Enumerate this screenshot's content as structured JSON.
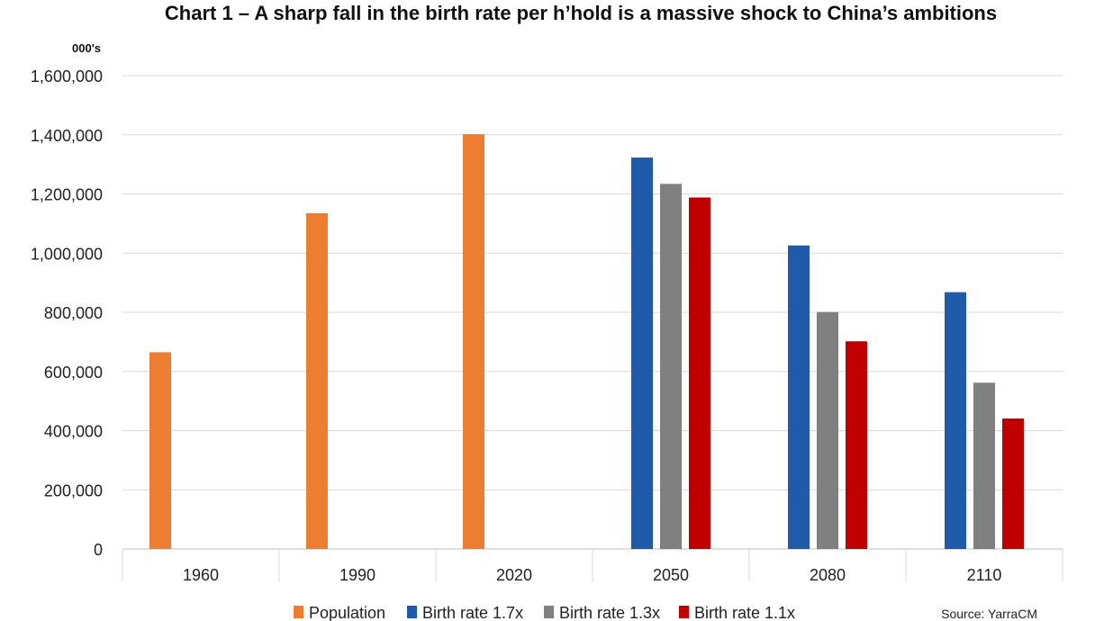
{
  "chart_data": {
    "type": "bar",
    "title": "Chart 1 – A sharp fall in the birth rate per h’hold is a massive shock to China’s ambitions",
    "unit_label": "000's",
    "source": "Source: YarraCM",
    "categories": [
      "1960",
      "1990",
      "2020",
      "2050",
      "2080",
      "2110"
    ],
    "ylim": [
      0,
      1600000
    ],
    "yticks": [
      0,
      200000,
      400000,
      600000,
      800000,
      1000000,
      1200000,
      1400000,
      1600000
    ],
    "ytick_labels": [
      "0",
      "200,000",
      "400,000",
      "600,000",
      "800,000",
      "1,000,000",
      "1,200,000",
      "1,400,000",
      "1,600,000"
    ],
    "grid": true,
    "legend_position": "bottom",
    "series": [
      {
        "name": "Population",
        "color": "#ED7D31",
        "values": [
          665000,
          1135000,
          1402000,
          null,
          null,
          null
        ]
      },
      {
        "name": "Birth rate 1.7x",
        "color": "#1F5BAA",
        "values": [
          null,
          null,
          null,
          1323000,
          1026000,
          868000
        ]
      },
      {
        "name": "Birth rate 1.3x",
        "color": "#808080",
        "values": [
          null,
          null,
          null,
          1234000,
          801000,
          562000
        ]
      },
      {
        "name": "Birth rate 1.1x",
        "color": "#C00000",
        "values": [
          null,
          null,
          null,
          1188000,
          702000,
          441000
        ]
      }
    ]
  }
}
